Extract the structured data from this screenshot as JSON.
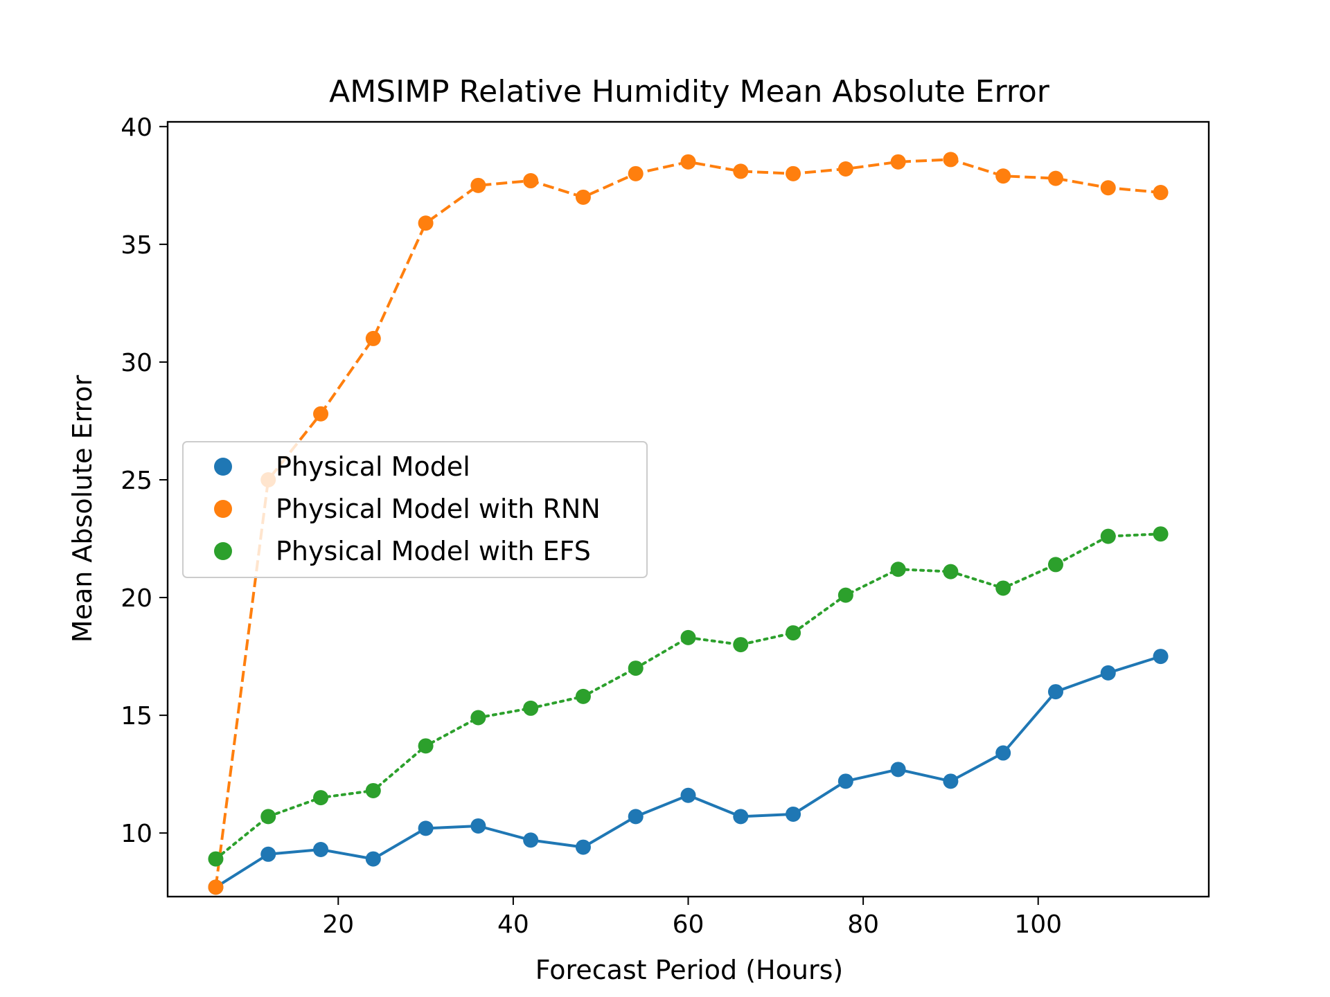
{
  "chart_data": {
    "type": "line",
    "title": "AMSIMP Relative Humidity Mean Absolute Error",
    "xlabel": "Forecast Period (Hours)",
    "ylabel": "Mean Absolute Error",
    "xlim": [
      0.5,
      119.5
    ],
    "ylim": [
      7.3,
      40.2
    ],
    "xticks": [
      20,
      40,
      60,
      80,
      100
    ],
    "yticks": [
      10,
      15,
      20,
      25,
      30,
      35,
      40
    ],
    "grid": false,
    "legend_position": "center-left",
    "x": [
      6,
      12,
      18,
      24,
      30,
      36,
      42,
      48,
      54,
      60,
      66,
      72,
      78,
      84,
      90,
      96,
      102,
      108,
      114
    ],
    "series": [
      {
        "name": "Physical Model",
        "color": "#1f77b4",
        "line_style": "solid",
        "values": [
          7.7,
          9.1,
          9.3,
          8.9,
          10.2,
          10.3,
          9.7,
          9.4,
          10.7,
          11.6,
          10.7,
          10.8,
          12.2,
          12.7,
          12.2,
          13.4,
          16.0,
          16.8,
          17.5
        ]
      },
      {
        "name": "Physical Model with RNN",
        "color": "#ff7f0e",
        "line_style": "dashed",
        "values": [
          7.7,
          25.0,
          27.8,
          31.0,
          35.9,
          37.5,
          37.7,
          37.0,
          38.0,
          38.5,
          38.1,
          38.0,
          38.2,
          38.5,
          38.6,
          37.9,
          37.8,
          37.4,
          37.2
        ]
      },
      {
        "name": "Physical Model with EFS",
        "color": "#2ca02c",
        "line_style": "dotted",
        "values": [
          8.9,
          10.7,
          11.5,
          11.8,
          13.7,
          14.9,
          15.3,
          15.8,
          17.0,
          18.3,
          18.0,
          18.5,
          20.1,
          21.2,
          21.1,
          20.4,
          21.4,
          22.6,
          22.7
        ]
      }
    ]
  }
}
